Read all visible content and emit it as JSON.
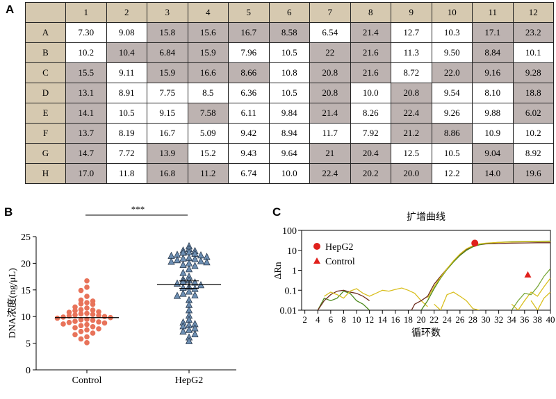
{
  "panels": {
    "a": "A",
    "b": "B",
    "c": "C"
  },
  "table": {
    "columns": [
      "1",
      "2",
      "3",
      "4",
      "5",
      "6",
      "7",
      "8",
      "9",
      "10",
      "11",
      "12"
    ],
    "rows": [
      {
        "label": "A",
        "values": [
          "7.30",
          "9.08",
          "15.8",
          "15.6",
          "16.7",
          "8.58",
          "6.54",
          "21.4",
          "12.7",
          "10.3",
          "17.1",
          "23.2"
        ],
        "highlight": [
          false,
          false,
          true,
          true,
          true,
          true,
          false,
          true,
          false,
          false,
          true,
          true
        ]
      },
      {
        "label": "B",
        "values": [
          "10.2",
          "10.4",
          "6.84",
          "15.9",
          "7.96",
          "10.5",
          "22",
          "21.6",
          "11.3",
          "9.50",
          "8.84",
          "10.1"
        ],
        "highlight": [
          false,
          true,
          true,
          true,
          false,
          false,
          true,
          true,
          false,
          false,
          true,
          false
        ]
      },
      {
        "label": "C",
        "values": [
          "15.5",
          "9.11",
          "15.9",
          "16.6",
          "8.66",
          "10.8",
          "20.8",
          "21.6",
          "8.72",
          "22.0",
          "9.16",
          "9.28"
        ],
        "highlight": [
          true,
          false,
          true,
          true,
          true,
          false,
          true,
          true,
          false,
          true,
          true,
          true
        ]
      },
      {
        "label": "D",
        "values": [
          "13.1",
          "8.91",
          "7.75",
          "8.5",
          "6.36",
          "10.5",
          "20.8",
          "10.0",
          "20.8",
          "9.54",
          "8.10",
          "18.8"
        ],
        "highlight": [
          true,
          false,
          false,
          false,
          false,
          false,
          true,
          false,
          true,
          false,
          false,
          true
        ]
      },
      {
        "label": "E",
        "values": [
          "14.1",
          "10.5",
          "9.15",
          "7.58",
          "6.11",
          "9.84",
          "21.4",
          "8.26",
          "22.4",
          "9.26",
          "9.88",
          "6.02"
        ],
        "highlight": [
          true,
          false,
          false,
          true,
          false,
          false,
          true,
          false,
          true,
          false,
          false,
          true
        ]
      },
      {
        "label": "F",
        "values": [
          "13.7",
          "8.19",
          "16.7",
          "5.09",
          "9.42",
          "8.94",
          "11.7",
          "7.92",
          "21.2",
          "8.86",
          "10.9",
          "10.2"
        ],
        "highlight": [
          true,
          false,
          false,
          false,
          false,
          false,
          false,
          false,
          true,
          true,
          false,
          false
        ]
      },
      {
        "label": "G",
        "values": [
          "14.7",
          "7.72",
          "13.9",
          "15.2",
          "9.43",
          "9.64",
          "21",
          "20.4",
          "12.5",
          "10.5",
          "9.04",
          "8.92"
        ],
        "highlight": [
          true,
          false,
          true,
          false,
          false,
          false,
          true,
          true,
          false,
          false,
          true,
          false
        ]
      },
      {
        "label": "H",
        "values": [
          "17.0",
          "11.8",
          "16.8",
          "11.2",
          "6.74",
          "10.0",
          "22.4",
          "20.2",
          "20.0",
          "12.2",
          "14.0",
          "19.6"
        ],
        "highlight": [
          true,
          false,
          true,
          true,
          false,
          false,
          true,
          true,
          true,
          false,
          true,
          true
        ]
      }
    ]
  },
  "colors": {
    "header_fill": "#d6c9b0",
    "highlight_fill": "#bdb3b1",
    "control": "#e8735a",
    "hepg2": "#6d8fb3",
    "marker_red": "#e0201c"
  },
  "chart_data": [
    {
      "type": "scatter",
      "ylabel": "DNA浓度(ng/μL)",
      "ylim": [
        0,
        25
      ],
      "yticks": [
        0,
        5,
        10,
        15,
        20,
        25
      ],
      "categories": [
        "Control",
        "HepG2"
      ],
      "significance": "***",
      "series": [
        {
          "name": "Control",
          "marker": "circle",
          "mean": 9.8,
          "values": [
            16.7,
            15.5,
            14.9,
            13.8,
            13.1,
            12.9,
            12.6,
            12.4,
            12.3,
            11.8,
            11.6,
            11.3,
            11.2,
            11.1,
            10.9,
            10.8,
            10.6,
            10.5,
            10.4,
            10.3,
            10.2,
            10.1,
            10.0,
            9.9,
            9.8,
            9.7,
            9.5,
            9.4,
            9.3,
            9.1,
            9.0,
            8.9,
            8.8,
            8.6,
            8.5,
            8.3,
            8.1,
            7.9,
            7.7,
            7.5,
            7.2,
            6.9,
            6.6,
            6.2,
            5.8,
            5.1
          ]
        },
        {
          "name": "HepG2",
          "marker": "triangle",
          "mean": 16.0,
          "sem_bar": [
            15.3,
            16.7
          ],
          "values": [
            23.2,
            22.7,
            22.4,
            22.3,
            22.1,
            22.0,
            21.8,
            21.6,
            21.5,
            21.4,
            21.2,
            21.0,
            20.9,
            20.8,
            20.6,
            20.4,
            20.3,
            20.2,
            20.0,
            19.7,
            19.5,
            18.9,
            18.2,
            17.5,
            17.0,
            16.8,
            16.6,
            16.4,
            16.2,
            15.9,
            15.6,
            15.4,
            15.2,
            14.7,
            14.3,
            14.0,
            13.9,
            13.1,
            12.2,
            11.2,
            10.2,
            9.4,
            8.9,
            8.6,
            8.4,
            8.2,
            7.8,
            7.5,
            7.2,
            6.7,
            6.1,
            5.4
          ]
        }
      ]
    },
    {
      "type": "line",
      "title": "扩增曲线",
      "xlabel": "循环数",
      "ylabel": "ΔRn",
      "xlim": [
        1.5,
        40
      ],
      "xticks": [
        2,
        4,
        6,
        8,
        10,
        12,
        14,
        16,
        18,
        20,
        22,
        24,
        26,
        28,
        30,
        32,
        34,
        36,
        38,
        40
      ],
      "ylim": [
        0.01,
        100
      ],
      "yscale": "log",
      "yticks": [
        0.01,
        0.1,
        1,
        10,
        100
      ],
      "yticklabels": [
        "0.01",
        "0.1",
        "1",
        "10",
        "100"
      ],
      "legend": [
        {
          "name": "HepG2",
          "marker": "circle"
        },
        {
          "name": "Control",
          "marker": "triangle"
        }
      ],
      "legend_position": "top-left",
      "markers": [
        {
          "series": "HepG2",
          "x": 28.3,
          "y": 23
        },
        {
          "series": "Control",
          "x": 36.5,
          "y": 0.6
        }
      ],
      "series": [
        {
          "color": "#4d8a1e",
          "points": [
            [
              4,
              0.01
            ],
            [
              5,
              0.04
            ],
            [
              6,
              0.03
            ],
            [
              7,
              0.04
            ],
            [
              8,
              0.09
            ],
            [
              9,
              0.07
            ],
            [
              10,
              0.03
            ],
            [
              11,
              0.02
            ],
            [
              12,
              0.01
            ]
          ]
        },
        {
          "color": "#6b2a1c",
          "points": [
            [
              4,
              0.01
            ],
            [
              5,
              0.03
            ],
            [
              6,
              0.06
            ],
            [
              7,
              0.09
            ],
            [
              8,
              0.1
            ],
            [
              9,
              0.08
            ],
            [
              10,
              0.07
            ],
            [
              11,
              0.05
            ],
            [
              12,
              0.03
            ]
          ]
        },
        {
          "color": "#d9bf1f",
          "points": [
            [
              5,
              0.05
            ],
            [
              6,
              0.08
            ],
            [
              7,
              0.06
            ],
            [
              8,
              0.04
            ],
            [
              9,
              0.09
            ],
            [
              10,
              0.12
            ],
            [
              11,
              0.07
            ],
            [
              12,
              0.05
            ],
            [
              13,
              0.07
            ],
            [
              14,
              0.1
            ],
            [
              15,
              0.09
            ],
            [
              16,
              0.11
            ],
            [
              17,
              0.13
            ],
            [
              18,
              0.1
            ],
            [
              19,
              0.07
            ],
            [
              20,
              0.03
            ],
            [
              21,
              0.015
            ]
          ]
        },
        {
          "color": "#6b2a1c",
          "points": [
            [
              18.5,
              0.01
            ],
            [
              19,
              0.02
            ],
            [
              20,
              0.03
            ],
            [
              21,
              0.05
            ],
            [
              22,
              0.2
            ],
            [
              23,
              0.5
            ],
            [
              24,
              1.2
            ],
            [
              25,
              2.8
            ],
            [
              26,
              6
            ],
            [
              27,
              11
            ],
            [
              28,
              16
            ],
            [
              29,
              19
            ],
            [
              30,
              21
            ],
            [
              32,
              22
            ],
            [
              34,
              23
            ],
            [
              36,
              23.5
            ],
            [
              38,
              24
            ],
            [
              40,
              24
            ]
          ]
        },
        {
          "color": "#4d8a1e",
          "points": [
            [
              20,
              0.01
            ],
            [
              21,
              0.03
            ],
            [
              22,
              0.12
            ],
            [
              23,
              0.4
            ],
            [
              24,
              1.1
            ],
            [
              25,
              2.6
            ],
            [
              26,
              5.5
            ],
            [
              27,
              10
            ],
            [
              28,
              15
            ],
            [
              29,
              19
            ],
            [
              30,
              22
            ],
            [
              32,
              25
            ],
            [
              34,
              27
            ],
            [
              36,
              28
            ],
            [
              38,
              28.5
            ],
            [
              40,
              29
            ]
          ]
        },
        {
          "color": "#d9bf1f",
          "points": [
            [
              21,
              0.04
            ],
            [
              22,
              0.15
            ],
            [
              23,
              0.45
            ],
            [
              24,
              1.2
            ],
            [
              25,
              3
            ],
            [
              26,
              6.5
            ],
            [
              27,
              12
            ],
            [
              28,
              17
            ],
            [
              29,
              21
            ],
            [
              30,
              23
            ],
            [
              32,
              25
            ],
            [
              34,
              26
            ],
            [
              36,
              27
            ],
            [
              38,
              27.5
            ],
            [
              40,
              27.5
            ]
          ]
        },
        {
          "color": "#d9bf1f",
          "points": [
            [
              22,
              0.02
            ],
            [
              23,
              0.01
            ],
            [
              24,
              0.06
            ],
            [
              25,
              0.08
            ],
            [
              26,
              0.05
            ],
            [
              27,
              0.03
            ],
            [
              28,
              0.012
            ],
            [
              29,
              0.01
            ]
          ]
        },
        {
          "color": "#d9bf1f",
          "points": [
            [
              34,
              0.02
            ],
            [
              35,
              0.01
            ],
            [
              36,
              0.03
            ],
            [
              37,
              0.08
            ],
            [
              38,
              0.05
            ],
            [
              39,
              0.15
            ],
            [
              40,
              0.4
            ]
          ]
        },
        {
          "color": "#d9bf1f",
          "points": [
            [
              37,
              0.03
            ],
            [
              38,
              0.01
            ],
            [
              39,
              0.04
            ],
            [
              40,
              0.08
            ]
          ]
        },
        {
          "color": "#7aa83a",
          "points": [
            [
              34,
              0.01
            ],
            [
              35,
              0.03
            ],
            [
              36,
              0.07
            ],
            [
              37,
              0.06
            ],
            [
              38,
              0.15
            ],
            [
              39,
              0.5
            ],
            [
              40,
              1.2
            ]
          ]
        }
      ]
    }
  ]
}
